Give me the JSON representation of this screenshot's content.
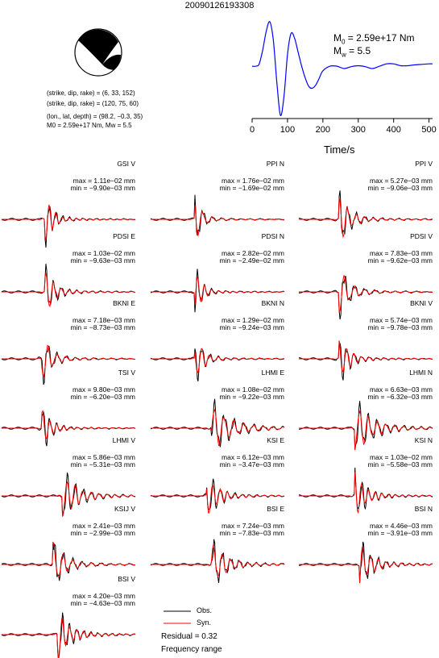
{
  "title": "20090126193308",
  "source": {
    "lines": [
      "(strike, dip, rake) = (6, 33, 152)",
      "(strike, dip, rake) = (120, 75, 60)",
      "(lon., lat, depth) = (98.2, −0.3, 35)",
      "M0 = 2.59e+17 Nm, Mw = 5.5"
    ],
    "strike": 6,
    "dip": 33,
    "rake": 152,
    "strike2": 120,
    "dip2": 75,
    "rake2": 60
  },
  "stf": {
    "m0_label": "M0 = 2.59e+17 Nm",
    "mw_label": "Mw = 5.5",
    "m0_prefix": "M",
    "m0_sub": "0",
    "m0_value": " = 2.59e+17 Nm",
    "mw_prefix": "M",
    "mw_sub": "w",
    "mw_value": " = 5.5",
    "xlabel": "Time/s",
    "xticks": [
      "0",
      "100",
      "200",
      "300",
      "400",
      "500"
    ],
    "color": "#0000ff"
  },
  "chart_data": {
    "type": "line",
    "title": "",
    "xlabel": "Time/s",
    "ylabel": "",
    "xlim": [
      0,
      510
    ],
    "series": [
      {
        "x": [
          0,
          10,
          20,
          30,
          40,
          50,
          60,
          70,
          80,
          90,
          100,
          110,
          120,
          130,
          140,
          150,
          160,
          170,
          180,
          190,
          200,
          220,
          240,
          260,
          280,
          300,
          320,
          340,
          360,
          380,
          400,
          420,
          440,
          460,
          480,
          500,
          510
        ],
        "values": [
          0.05,
          0.05,
          0.1,
          0.4,
          0.8,
          1.0,
          0.6,
          -0.3,
          -1.0,
          -0.6,
          0.3,
          0.75,
          0.65,
          0.35,
          0.05,
          -0.2,
          -0.38,
          -0.42,
          -0.35,
          -0.2,
          -0.05,
          0.05,
          0.05,
          0.0,
          0.04,
          0.06,
          0.04,
          0.0,
          0.05,
          0.1,
          0.1,
          0.06,
          0.06,
          0.08,
          0.09,
          0.1,
          0.1
        ]
      }
    ]
  },
  "stations": [
    {
      "name": "GSI V",
      "max": "max = 1.11e−02 mm",
      "min": "min = −9.90e−03 mm",
      "seed": 1,
      "pos": 0.32,
      "env": 0.7
    },
    {
      "name": "PPI N",
      "max": "max = 1.76e−02 mm",
      "min": "min = −1.69e−02 mm",
      "seed": 2,
      "pos": 0.33,
      "env": 0.6
    },
    {
      "name": "PPI V",
      "max": "max = 5.27e−03 mm",
      "min": "min = −9.06e−03 mm",
      "seed": 3,
      "pos": 0.3,
      "env": 0.9
    },
    {
      "name": "PDSI E",
      "max": "max = 1.03e−02 mm",
      "min": "min = −9.63e−03 mm",
      "seed": 4,
      "pos": 0.32,
      "env": 0.8
    },
    {
      "name": "PDSI N",
      "max": "max = 2.82e−02 mm",
      "min": "min = −2.49e−02 mm",
      "seed": 5,
      "pos": 0.33,
      "env": 0.6
    },
    {
      "name": "PDSI V",
      "max": "max = 7.83e−03 mm",
      "min": "min = −9.62e−03 mm",
      "seed": 6,
      "pos": 0.3,
      "env": 0.9
    },
    {
      "name": "BKNI E",
      "max": "max = 7.18e−03 mm",
      "min": "min = −8.73e−03 mm",
      "seed": 7,
      "pos": 0.3,
      "env": 0.8
    },
    {
      "name": "BKNI N",
      "max": "max = 1.29e−02 mm",
      "min": "min = −9.24e−03 mm",
      "seed": 8,
      "pos": 0.33,
      "env": 0.7
    },
    {
      "name": "BKNI V",
      "max": "max = 5.74e−03 mm",
      "min": "min = −9.78e−03 mm",
      "seed": 9,
      "pos": 0.3,
      "env": 0.8
    },
    {
      "name": "TSI V",
      "max": "max = 9.80e−03 mm",
      "min": "min = −6.20e−03 mm",
      "seed": 10,
      "pos": 0.3,
      "env": 0.7
    },
    {
      "name": "LHMI E",
      "max": "max = 1.08e−02 mm",
      "min": "min = −9.22e−03 mm",
      "seed": 11,
      "pos": 0.45,
      "env": 1.5
    },
    {
      "name": "LHMI N",
      "max": "max = 6.63e−03 mm",
      "min": "min = −6.32e−03 mm",
      "seed": 12,
      "pos": 0.42,
      "env": 1.4
    },
    {
      "name": "LHMI V",
      "max": "max = 5.86e−03 mm",
      "min": "min = −5.31e−03 mm",
      "seed": 13,
      "pos": 0.45,
      "env": 1.2
    },
    {
      "name": "KSI E",
      "max": "max = 6.12e−03 mm",
      "min": "min = −3.47e−03 mm",
      "seed": 14,
      "pos": 0.42,
      "env": 0.9
    },
    {
      "name": "KSI N",
      "max": "max = 1.03e−02 mm",
      "min": "min = −5.58e−03 mm",
      "seed": 15,
      "pos": 0.42,
      "env": 0.9
    },
    {
      "name": "KSIJ V",
      "max": "max = 2.41e−03 mm",
      "min": "min = −2.99e−03 mm",
      "seed": 16,
      "pos": 0.38,
      "env": 1.0
    },
    {
      "name": "BSI E",
      "max": "max = 7.24e−03 mm",
      "min": "min = −7.83e−03 mm",
      "seed": 17,
      "pos": 0.45,
      "env": 1.1
    },
    {
      "name": "BSI N",
      "max": "max = 4.46e−03 mm",
      "min": "min = −3.91e−03 mm",
      "seed": 18,
      "pos": 0.45,
      "env": 1.0
    },
    {
      "name": "BSI V",
      "max": "max = 4.20e−03 mm",
      "min": "min = −4.63e−03 mm",
      "seed": 19,
      "pos": 0.42,
      "env": 1.0
    }
  ],
  "legend": {
    "obs_label": "Obs.",
    "syn_label": "Syn.",
    "obs_color": "#000000",
    "syn_color": "#ff0000"
  },
  "footer": {
    "residual": "Residual = 0.32",
    "freq": "Frequency range"
  }
}
